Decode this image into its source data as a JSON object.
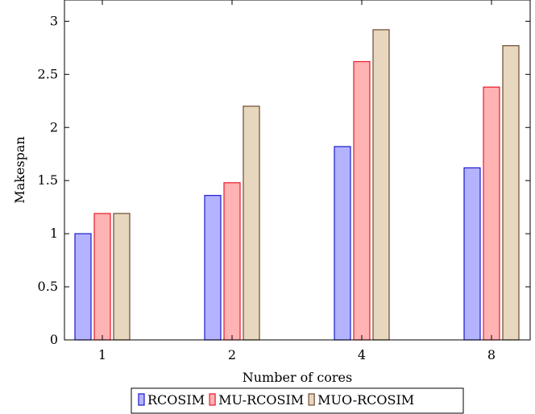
{
  "chart_data": {
    "type": "bar",
    "title": "",
    "xlabel": "Number of cores",
    "ylabel": "Makespan",
    "categories": [
      "1",
      "2",
      "4",
      "8"
    ],
    "ylim": [
      0,
      3.2
    ],
    "yticks": [
      "0",
      "0.5",
      "1",
      "1.5",
      "2",
      "2.5",
      "3"
    ],
    "ytick_values": [
      0,
      0.5,
      1,
      1.5,
      2,
      2.5,
      3
    ],
    "grid": false,
    "legend_position": "bottom-center",
    "series": [
      {
        "name": "RCOSIM",
        "values": [
          1.0,
          1.36,
          1.82,
          1.62
        ],
        "fill": "#b3b3ff",
        "stroke": "#1a1acc"
      },
      {
        "name": "MU-RCOSIM",
        "values": [
          1.19,
          1.48,
          2.62,
          2.38
        ],
        "fill": "#ffb3b3",
        "stroke": "#e8192c"
      },
      {
        "name": "MUO-RCOSIM",
        "values": [
          1.19,
          2.2,
          2.92,
          2.77
        ],
        "fill": "#e8d7bf",
        "stroke": "#6b4a2e"
      }
    ]
  }
}
